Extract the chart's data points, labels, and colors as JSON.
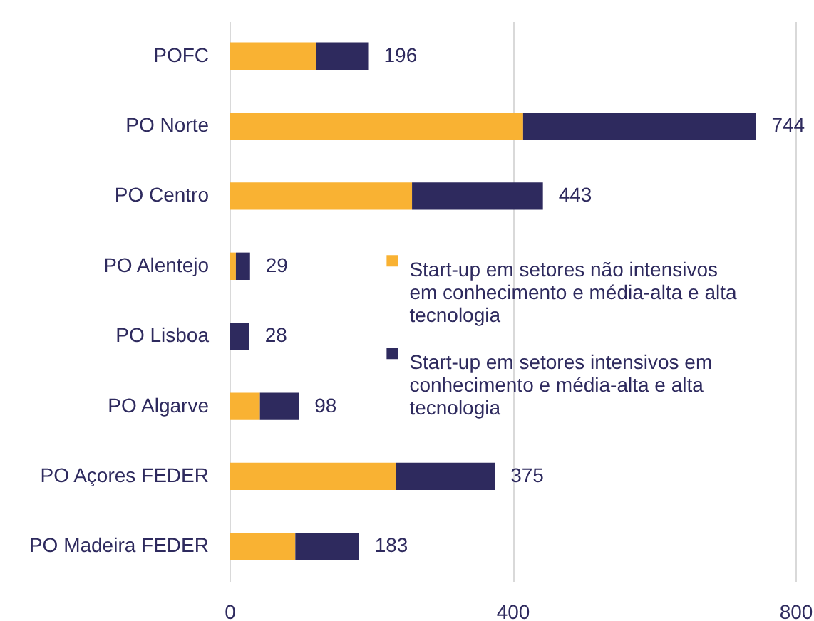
{
  "chart_data": {
    "type": "bar",
    "orientation": "horizontal",
    "stacked": true,
    "categories": [
      "POFC",
      "PO Norte",
      "PO Centro",
      "PO Alentejo",
      "PO Lisboa",
      "PO Algarve",
      "PO Açores FEDER",
      "PO Madeira FEDER"
    ],
    "series": [
      {
        "name": "Start-up em setores não intensivos em conhecimento e média-alta e alta tecnologia",
        "color": "#f9b233",
        "values": [
          122,
          415,
          258,
          9,
          null,
          43,
          235,
          93
        ]
      },
      {
        "name": "Start-up em setores intensivos em conhecimento e média-alta e alta tecnologia",
        "color": "#2e2a5e",
        "values": [
          74,
          329,
          185,
          20,
          28,
          55,
          140,
          90
        ]
      }
    ],
    "totals": [
      "196",
      "744",
      "443",
      "29",
      "28",
      "98",
      "375",
      "183"
    ],
    "xlim": [
      0,
      800
    ],
    "xticks": [
      0,
      400,
      800
    ],
    "grid": "x",
    "legend": "right"
  }
}
